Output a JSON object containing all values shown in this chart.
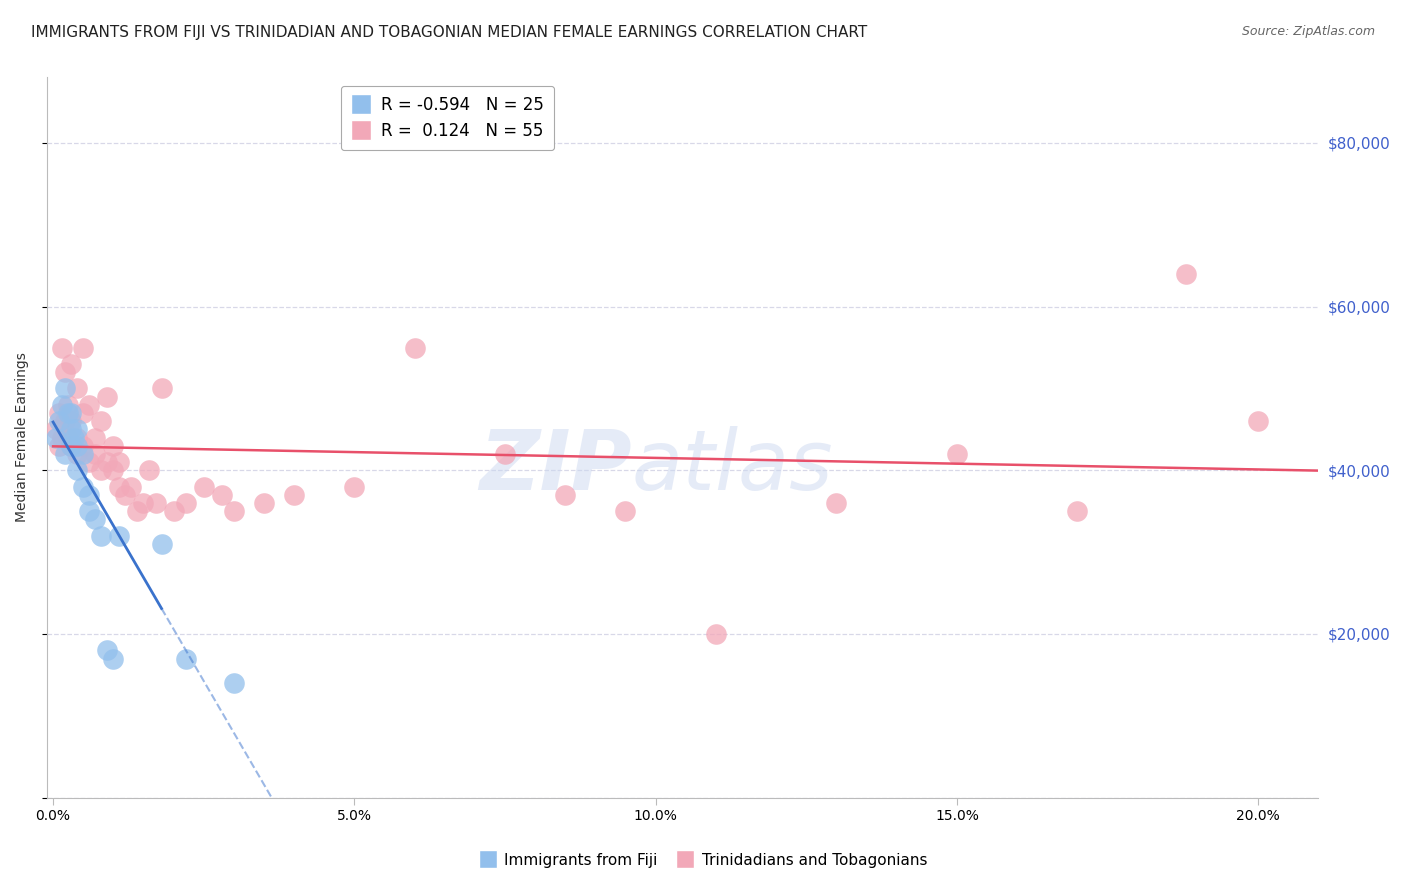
{
  "title": "IMMIGRANTS FROM FIJI VS TRINIDADIAN AND TOBAGONIAN MEDIAN FEMALE EARNINGS CORRELATION CHART",
  "source": "Source: ZipAtlas.com",
  "ylabel": "Median Female Earnings",
  "x_ticks": [
    0.0,
    0.05,
    0.1,
    0.15,
    0.2
  ],
  "x_tick_labels": [
    "0.0%",
    "5.0%",
    "10.0%",
    "15.0%",
    "20.0%"
  ],
  "y_ticks": [
    0,
    20000,
    40000,
    60000,
    80000
  ],
  "y_tick_labels": [
    "",
    "$20,000",
    "$40,000",
    "$60,000",
    "$80,000"
  ],
  "xlim": [
    -0.001,
    0.21
  ],
  "ylim": [
    0,
    88000
  ],
  "fiji_R": -0.594,
  "fiji_N": 25,
  "tt_R": 0.124,
  "tt_N": 55,
  "fiji_color": "#92bfec",
  "tt_color": "#f2a8b8",
  "fiji_line_color": "#3a72cc",
  "tt_line_color": "#e8506a",
  "fiji_scatter_x": [
    0.0005,
    0.001,
    0.0015,
    0.002,
    0.002,
    0.0025,
    0.003,
    0.003,
    0.003,
    0.0035,
    0.004,
    0.004,
    0.004,
    0.005,
    0.005,
    0.006,
    0.006,
    0.007,
    0.008,
    0.009,
    0.01,
    0.011,
    0.018,
    0.022,
    0.03
  ],
  "fiji_scatter_y": [
    44000,
    46000,
    48000,
    50000,
    42000,
    47000,
    45000,
    43000,
    47000,
    44000,
    43000,
    45000,
    40000,
    42000,
    38000,
    37000,
    35000,
    34000,
    32000,
    18000,
    17000,
    32000,
    31000,
    17000,
    14000
  ],
  "tt_scatter_x": [
    0.0005,
    0.001,
    0.001,
    0.0015,
    0.0015,
    0.002,
    0.002,
    0.0025,
    0.0025,
    0.003,
    0.003,
    0.003,
    0.004,
    0.004,
    0.004,
    0.005,
    0.005,
    0.005,
    0.006,
    0.006,
    0.007,
    0.007,
    0.008,
    0.008,
    0.009,
    0.009,
    0.01,
    0.01,
    0.011,
    0.011,
    0.012,
    0.013,
    0.014,
    0.015,
    0.016,
    0.017,
    0.018,
    0.02,
    0.022,
    0.025,
    0.028,
    0.03,
    0.035,
    0.04,
    0.05,
    0.06,
    0.075,
    0.085,
    0.095,
    0.11,
    0.13,
    0.15,
    0.17,
    0.188,
    0.2
  ],
  "tt_scatter_y": [
    45000,
    43000,
    47000,
    44000,
    55000,
    46000,
    52000,
    44000,
    48000,
    43000,
    46000,
    53000,
    44000,
    50000,
    42000,
    43000,
    47000,
    55000,
    41000,
    48000,
    42000,
    44000,
    40000,
    46000,
    41000,
    49000,
    40000,
    43000,
    38000,
    41000,
    37000,
    38000,
    35000,
    36000,
    40000,
    36000,
    50000,
    35000,
    36000,
    38000,
    37000,
    35000,
    36000,
    37000,
    38000,
    55000,
    42000,
    37000,
    35000,
    20000,
    36000,
    42000,
    35000,
    64000,
    46000
  ],
  "background_color": "#ffffff",
  "grid_color": "#d8d8e8",
  "title_fontsize": 11,
  "axis_label_fontsize": 10,
  "tick_fontsize": 10,
  "legend_fontsize": 12,
  "watermark_text": "ZIP",
  "watermark_text2": "atlas",
  "watermark_color": "#ccd8f0",
  "watermark_alpha": 0.5,
  "right_tick_color": "#4060cc"
}
